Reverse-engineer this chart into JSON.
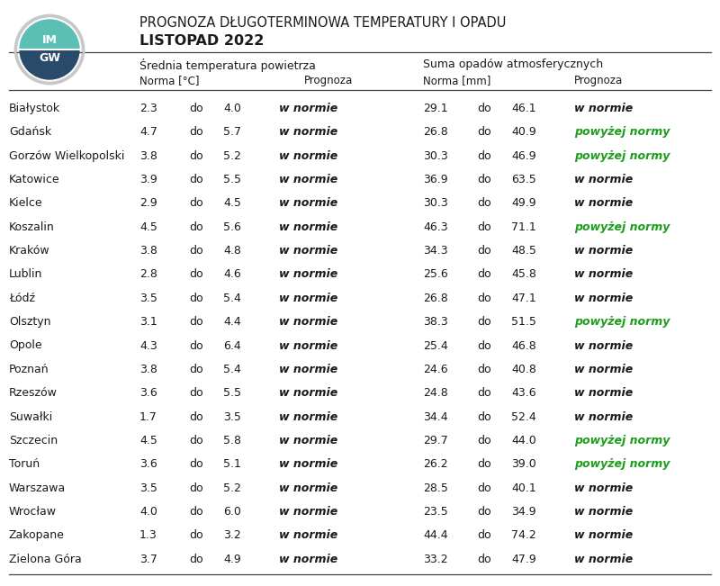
{
  "title_line1": "PROGNOZA DŁUGOTERMINOWA TEMPERATURY I OPADU",
  "title_line2": "LISTOPAD 2022",
  "header1": "Średnia temperatura powietrza",
  "header2": "Suma opadów atmosferycznych",
  "subheader_norma_temp": "Norma [°C]",
  "subheader_prognoza": "Prognoza",
  "subheader_norma_mm": "Norma [mm]",
  "subheader_prognoza2": "Prognoza",
  "rows": [
    {
      "city": "Białystok",
      "t1": "2.3",
      "t2": "4.0",
      "tp": "w normie",
      "p1": "29.1",
      "p2": "46.1",
      "pp": "w normie",
      "pp_green": false
    },
    {
      "city": "Gdańsk",
      "t1": "4.7",
      "t2": "5.7",
      "tp": "w normie",
      "p1": "26.8",
      "p2": "40.9",
      "pp": "powyżej normy",
      "pp_green": true
    },
    {
      "city": "Gorzów Wielkopolski",
      "t1": "3.8",
      "t2": "5.2",
      "tp": "w normie",
      "p1": "30.3",
      "p2": "46.9",
      "pp": "powyżej normy",
      "pp_green": true
    },
    {
      "city": "Katowice",
      "t1": "3.9",
      "t2": "5.5",
      "tp": "w normie",
      "p1": "36.9",
      "p2": "63.5",
      "pp": "w normie",
      "pp_green": false
    },
    {
      "city": "Kielce",
      "t1": "2.9",
      "t2": "4.5",
      "tp": "w normie",
      "p1": "30.3",
      "p2": "49.9",
      "pp": "w normie",
      "pp_green": false
    },
    {
      "city": "Koszalin",
      "t1": "4.5",
      "t2": "5.6",
      "tp": "w normie",
      "p1": "46.3",
      "p2": "71.1",
      "pp": "powyżej normy",
      "pp_green": true
    },
    {
      "city": "Kraków",
      "t1": "3.8",
      "t2": "4.8",
      "tp": "w normie",
      "p1": "34.3",
      "p2": "48.5",
      "pp": "w normie",
      "pp_green": false
    },
    {
      "city": "Lublin",
      "t1": "2.8",
      "t2": "4.6",
      "tp": "w normie",
      "p1": "25.6",
      "p2": "45.8",
      "pp": "w normie",
      "pp_green": false
    },
    {
      "city": "Łódź",
      "t1": "3.5",
      "t2": "5.4",
      "tp": "w normie",
      "p1": "26.8",
      "p2": "47.1",
      "pp": "w normie",
      "pp_green": false
    },
    {
      "city": "Olsztyn",
      "t1": "3.1",
      "t2": "4.4",
      "tp": "w normie",
      "p1": "38.3",
      "p2": "51.5",
      "pp": "powyżej normy",
      "pp_green": true
    },
    {
      "city": "Opole",
      "t1": "4.3",
      "t2": "6.4",
      "tp": "w normie",
      "p1": "25.4",
      "p2": "46.8",
      "pp": "w normie",
      "pp_green": false
    },
    {
      "city": "Poznań",
      "t1": "3.8",
      "t2": "5.4",
      "tp": "w normie",
      "p1": "24.6",
      "p2": "40.8",
      "pp": "w normie",
      "pp_green": false
    },
    {
      "city": "Rzeszów",
      "t1": "3.6",
      "t2": "5.5",
      "tp": "w normie",
      "p1": "24.8",
      "p2": "43.6",
      "pp": "w normie",
      "pp_green": false
    },
    {
      "city": "Suwałki",
      "t1": "1.7",
      "t2": "3.5",
      "tp": "w normie",
      "p1": "34.4",
      "p2": "52.4",
      "pp": "w normie",
      "pp_green": false
    },
    {
      "city": "Szczecin",
      "t1": "4.5",
      "t2": "5.8",
      "tp": "w normie",
      "p1": "29.7",
      "p2": "44.0",
      "pp": "powyżej normy",
      "pp_green": true
    },
    {
      "city": "Toruń",
      "t1": "3.6",
      "t2": "5.1",
      "tp": "w normie",
      "p1": "26.2",
      "p2": "39.0",
      "pp": "powyżej normy",
      "pp_green": true
    },
    {
      "city": "Warszawa",
      "t1": "3.5",
      "t2": "5.2",
      "tp": "w normie",
      "p1": "28.5",
      "p2": "40.1",
      "pp": "w normie",
      "pp_green": false
    },
    {
      "city": "Wrocław",
      "t1": "4.0",
      "t2": "6.0",
      "tp": "w normie",
      "p1": "23.5",
      "p2": "34.9",
      "pp": "w normie",
      "pp_green": false
    },
    {
      "city": "Zakopane",
      "t1": "1.3",
      "t2": "3.2",
      "tp": "w normie",
      "p1": "44.4",
      "p2": "74.2",
      "pp": "w normie",
      "pp_green": false
    },
    {
      "city": "Zielona Góra",
      "t1": "3.7",
      "t2": "4.9",
      "tp": "w normie",
      "p1": "33.2",
      "p2": "47.9",
      "pp": "w normie",
      "pp_green": false
    }
  ],
  "green_color": "#1a9e1a",
  "black_color": "#1a1a1a",
  "bg_color": "#ffffff",
  "logo_outer_color": "#c8c8c8",
  "logo_teal_color": "#5bbfb5",
  "logo_dark_color": "#2a4a6a",
  "figsize": [
    8.0,
    6.51
  ],
  "dpi": 100
}
